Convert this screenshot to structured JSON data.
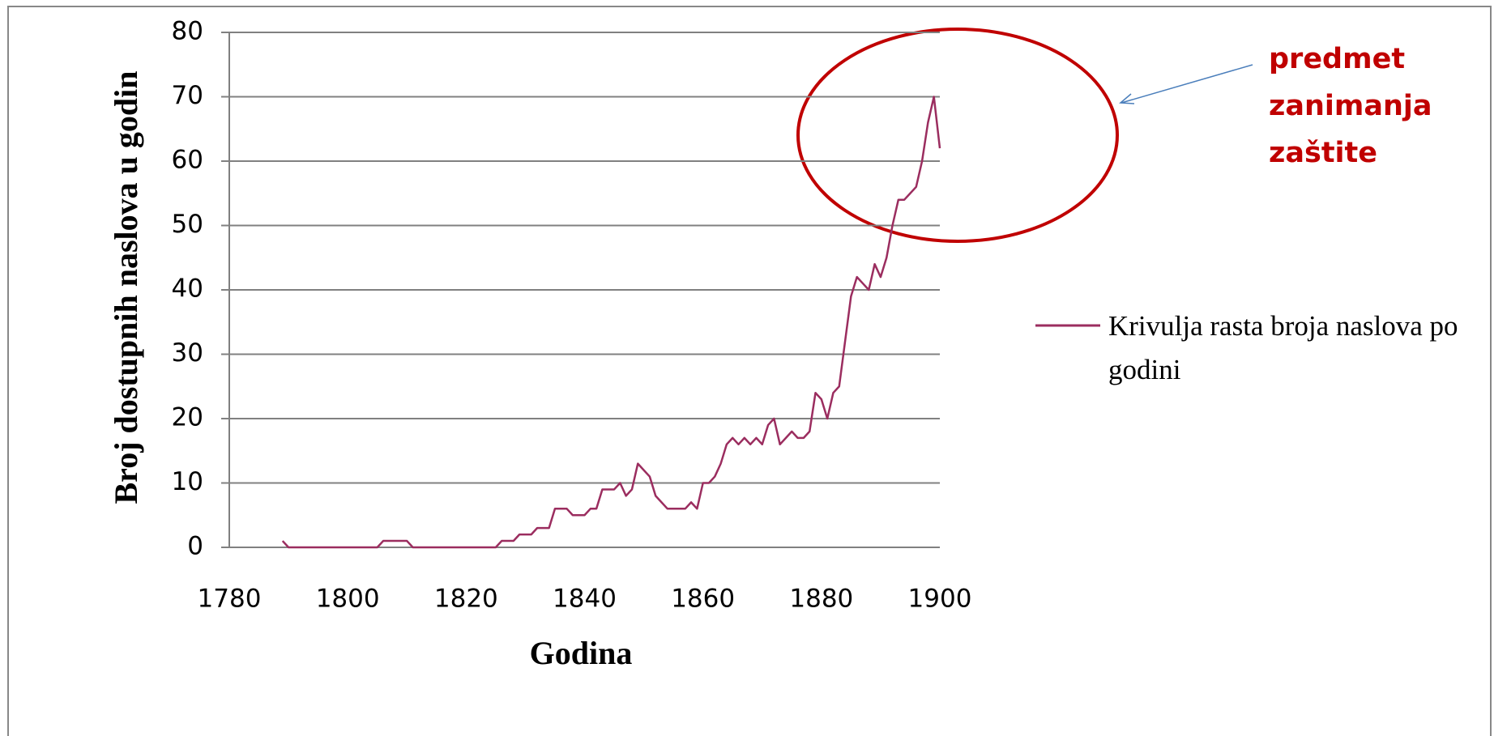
{
  "chart_data": {
    "type": "line",
    "xlabel": "Godina",
    "ylabel": "Broj dostupnih naslova u godin",
    "annotation": [
      "predmet",
      "zanimanja",
      "zaštite"
    ],
    "x": [
      1789,
      1790,
      1791,
      1792,
      1793,
      1794,
      1795,
      1796,
      1797,
      1798,
      1799,
      1800,
      1801,
      1802,
      1803,
      1804,
      1805,
      1806,
      1807,
      1808,
      1809,
      1810,
      1811,
      1812,
      1813,
      1814,
      1815,
      1816,
      1817,
      1818,
      1819,
      1820,
      1821,
      1822,
      1823,
      1824,
      1825,
      1826,
      1827,
      1828,
      1829,
      1830,
      1831,
      1832,
      1833,
      1834,
      1835,
      1836,
      1837,
      1838,
      1839,
      1840,
      1841,
      1842,
      1843,
      1844,
      1845,
      1846,
      1847,
      1848,
      1849,
      1850,
      1851,
      1852,
      1853,
      1854,
      1855,
      1856,
      1857,
      1858,
      1859,
      1860,
      1861,
      1862,
      1863,
      1864,
      1865,
      1866,
      1867,
      1868,
      1869,
      1870,
      1871,
      1872,
      1873,
      1874,
      1875,
      1876,
      1877,
      1878,
      1879,
      1880,
      1881,
      1882,
      1883,
      1884,
      1885,
      1886,
      1887,
      1888,
      1889,
      1890,
      1891,
      1892,
      1893,
      1894,
      1895,
      1896,
      1897,
      1898,
      1899,
      1900
    ],
    "series": [
      {
        "name": "Krivulja rasta broja naslova po godini",
        "color": "#9b2d5f",
        "values": [
          1,
          0,
          0,
          0,
          0,
          0,
          0,
          0,
          0,
          0,
          0,
          0,
          0,
          0,
          0,
          0,
          0,
          1,
          1,
          1,
          1,
          1,
          0,
          0,
          0,
          0,
          0,
          0,
          0,
          0,
          0,
          0,
          0,
          0,
          0,
          0,
          0,
          1,
          1,
          1,
          2,
          2,
          2,
          3,
          3,
          3,
          6,
          6,
          6,
          5,
          5,
          5,
          6,
          6,
          9,
          9,
          9,
          10,
          8,
          9,
          13,
          12,
          11,
          8,
          7,
          6,
          6,
          6,
          6,
          7,
          6,
          10,
          10,
          11,
          13,
          16,
          17,
          16,
          17,
          16,
          17,
          16,
          19,
          20,
          16,
          17,
          18,
          17,
          17,
          18,
          24,
          23,
          20,
          24,
          25,
          32,
          39,
          42,
          41,
          40,
          44,
          42,
          45,
          50,
          54,
          54,
          55,
          56,
          60,
          66,
          70,
          62
        ]
      }
    ],
    "xlim": [
      1780,
      1900
    ],
    "xticks": [
      1780,
      1800,
      1820,
      1840,
      1860,
      1880,
      1900
    ],
    "ylim": [
      0,
      80
    ],
    "yticks": [
      0,
      10,
      20,
      30,
      40,
      50,
      60,
      70,
      80
    ],
    "grid": true,
    "legend": "right"
  }
}
